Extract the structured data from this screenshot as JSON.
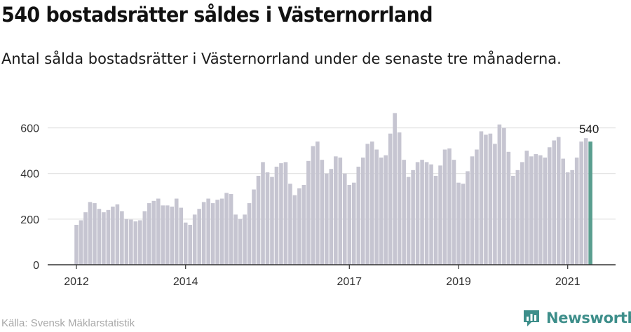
{
  "header": {
    "title": "540 bostadsrätter såldes i Västernorrland",
    "subtitle": "Antal sålda bostadsrätter i Västernorrland under de senaste tre månaderna."
  },
  "footer": {
    "source": "Källa: Svensk Mäklarstatistik",
    "brand": "Newsworthy"
  },
  "colors": {
    "bar": "#c6c5d1",
    "highlight": "#5a9e8f",
    "grid": "#dcdcdc",
    "axis": "#333333",
    "brand": "#3d8e8a"
  },
  "chart_data": {
    "type": "bar",
    "x_ticks": [
      "2012",
      "2014",
      "2017",
      "2019",
      "2021"
    ],
    "y_ticks": [
      0,
      200,
      400,
      600
    ],
    "ylim": [
      0,
      700
    ],
    "grid": true,
    "highlight_label": "540",
    "values": [
      175,
      195,
      230,
      275,
      270,
      245,
      230,
      240,
      255,
      265,
      235,
      200,
      198,
      190,
      195,
      235,
      270,
      280,
      290,
      260,
      260,
      255,
      290,
      250,
      185,
      175,
      220,
      245,
      275,
      290,
      270,
      285,
      290,
      315,
      310,
      220,
      200,
      220,
      270,
      330,
      390,
      450,
      405,
      385,
      430,
      445,
      450,
      355,
      305,
      335,
      350,
      455,
      520,
      540,
      460,
      400,
      420,
      475,
      470,
      400,
      350,
      360,
      430,
      470,
      530,
      540,
      505,
      470,
      480,
      575,
      665,
      580,
      460,
      385,
      415,
      450,
      460,
      450,
      440,
      390,
      435,
      505,
      510,
      460,
      360,
      355,
      410,
      475,
      505,
      585,
      570,
      575,
      530,
      615,
      600,
      495,
      390,
      415,
      450,
      500,
      475,
      485,
      480,
      470,
      515,
      545,
      560,
      465,
      405,
      415,
      470,
      540,
      555,
      540
    ]
  }
}
